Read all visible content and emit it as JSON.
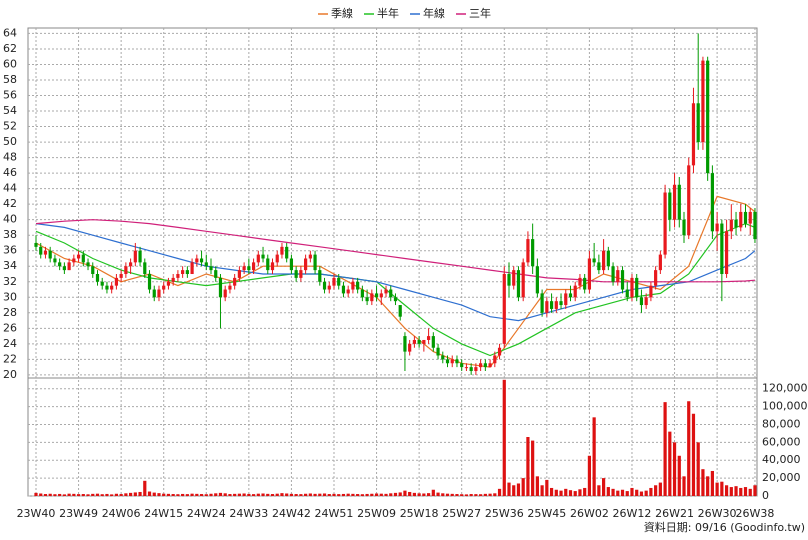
{
  "chart_data": [
    {
      "type": "candlestick",
      "ylim": [
        19.6,
        64.7
      ],
      "grid": true,
      "up_color": "#e8191e",
      "down_color": "#009a00",
      "yticks": [
        20,
        22,
        24,
        26,
        28,
        30,
        32,
        34,
        36,
        38,
        40,
        42,
        44,
        46,
        48,
        50,
        52,
        54,
        56,
        58,
        60,
        62,
        64
      ],
      "open": [
        37,
        36.5,
        35.5,
        36,
        35,
        34.5,
        34,
        33.5,
        34.5,
        35,
        35.5,
        34.5,
        34,
        33,
        32,
        31.5,
        31,
        31.5,
        32.5,
        33,
        34,
        34.5,
        36,
        34.5,
        33,
        31,
        30,
        31,
        31.5,
        32,
        32.5,
        33,
        33.5,
        33,
        34.5,
        35,
        34.5,
        34,
        33.5,
        32.5,
        30,
        31,
        31.5,
        32.5,
        33.5,
        34,
        33.5,
        34.5,
        35.5,
        35,
        33.5,
        34.5,
        35.5,
        36.5,
        35,
        33.5,
        32.5,
        33.5,
        35,
        35.5,
        33.5,
        32,
        31,
        31.5,
        32.5,
        31.5,
        30.5,
        31,
        32,
        31,
        30,
        29.5,
        30.5,
        30,
        30.5,
        31,
        30,
        29,
        25,
        23,
        24,
        24.5,
        24,
        24.5,
        25,
        23.5,
        22.5,
        22,
        21.5,
        22,
        21.5,
        21,
        21,
        20.5,
        21,
        21.5,
        21,
        21.5,
        22.5,
        24,
        33,
        31.5,
        33.5,
        30,
        34.5,
        37.5,
        34,
        30.5,
        28,
        29.5,
        28.5,
        29.5,
        29,
        30.5,
        30,
        31.5,
        32.5,
        31,
        35,
        34.5,
        33.5,
        36,
        34,
        32,
        33.5,
        31,
        30,
        32.5,
        30,
        29,
        30,
        31.5,
        33.5,
        35.5,
        43.5,
        40,
        44.5,
        40,
        38,
        47,
        55,
        50,
        60.5,
        46,
        38.5,
        39.5,
        33,
        38.5,
        40,
        39,
        41,
        39.5,
        41
      ],
      "high": [
        38,
        37,
        36.5,
        36.5,
        35.5,
        35,
        34.5,
        35,
        35.5,
        36,
        36,
        35,
        34.5,
        33.5,
        32.5,
        32,
        32,
        33,
        33.5,
        34.5,
        35,
        37,
        36.5,
        35,
        33.5,
        31.5,
        31.5,
        32,
        32.5,
        33,
        33.5,
        34,
        34,
        35,
        35.5,
        36,
        35.5,
        35,
        34,
        33,
        31.5,
        32,
        33,
        34,
        34.5,
        35,
        35,
        36,
        36.5,
        35.5,
        35,
        36,
        37,
        37,
        35.5,
        34,
        34,
        35.5,
        36,
        36,
        34,
        32.5,
        32,
        33,
        33,
        32,
        31.5,
        32.5,
        32.5,
        31.5,
        31,
        31,
        31.5,
        31,
        31.5,
        31.5,
        30.5,
        29,
        25.5,
        24.5,
        25,
        25,
        24.5,
        26,
        25.5,
        24,
        23,
        22.5,
        22.5,
        22.5,
        22,
        21.5,
        21.5,
        21.5,
        22,
        22,
        22,
        23,
        24,
        34,
        34.5,
        34,
        34,
        35,
        38.5,
        39.5,
        35,
        31,
        30,
        30.5,
        30,
        30.5,
        31,
        31.5,
        32,
        33,
        33,
        36,
        37,
        35.5,
        37.5,
        36.5,
        34.5,
        34,
        34,
        32,
        33,
        33,
        31,
        30.5,
        32,
        34,
        36,
        44.5,
        44,
        46,
        45.5,
        41,
        48,
        57,
        64,
        61,
        61,
        47,
        41,
        40,
        40,
        42,
        41,
        42,
        42,
        41.5,
        41.5
      ],
      "low": [
        36,
        35,
        35,
        34.5,
        34,
        33.5,
        33,
        33.5,
        34,
        34.5,
        34,
        33.5,
        32.5,
        31.5,
        31,
        30.5,
        30.5,
        31,
        32,
        32.5,
        33,
        34,
        34,
        32.5,
        30.5,
        29.5,
        29.5,
        30.5,
        31,
        31.5,
        32,
        32.5,
        32.5,
        33,
        34,
        34,
        33.5,
        33,
        32,
        26,
        29.5,
        30.5,
        31,
        32,
        33,
        33,
        33,
        34,
        34.5,
        33,
        33,
        34,
        35,
        34.5,
        33,
        32,
        32,
        33,
        34.5,
        33,
        31.5,
        30.5,
        30.5,
        31,
        31,
        30,
        30,
        30.5,
        30.5,
        29.5,
        29,
        29,
        29.5,
        29,
        30,
        29.5,
        29,
        27,
        20.5,
        22.5,
        23.5,
        23.5,
        23,
        24,
        23,
        22,
        21.5,
        21,
        21,
        21,
        20.5,
        20.5,
        20,
        20,
        20.5,
        20.5,
        21,
        21,
        22,
        23.5,
        30,
        31,
        29.5,
        29.5,
        34,
        33,
        30,
        27.5,
        27.5,
        28,
        28,
        28.5,
        28.5,
        29.5,
        29.5,
        31,
        30.5,
        30.5,
        34,
        33,
        33,
        33.5,
        31.5,
        31.5,
        30.5,
        29.5,
        29.5,
        29.5,
        28,
        28.5,
        29.5,
        31,
        33,
        35,
        38.5,
        39,
        39,
        37,
        37.5,
        46,
        49,
        49,
        45,
        37.5,
        36,
        29.5,
        32.5,
        37.5,
        38,
        38.5,
        39,
        38,
        37
      ],
      "close": [
        36.5,
        35.5,
        36,
        35,
        34.5,
        34,
        33.5,
        34.5,
        35,
        35.5,
        34.5,
        34,
        33,
        32,
        31.5,
        31,
        31.5,
        32.5,
        33,
        34,
        34.5,
        36,
        34.5,
        33,
        31,
        30,
        31,
        31.5,
        32,
        32.5,
        33,
        33.5,
        33,
        34.5,
        35,
        34.5,
        34,
        33.5,
        32.5,
        30,
        31,
        31.5,
        32.5,
        33.5,
        34,
        33.5,
        34.5,
        35.5,
        35,
        33.5,
        34.5,
        35.5,
        36.5,
        35,
        33.5,
        32.5,
        33.5,
        35,
        35.5,
        33.5,
        32,
        31,
        31.5,
        32.5,
        31.5,
        30.5,
        31,
        32,
        31,
        30,
        29.5,
        30.5,
        30,
        30.5,
        31,
        30,
        29.5,
        27.5,
        23,
        24,
        24.5,
        24,
        24.5,
        25,
        23.5,
        22.5,
        22,
        21.5,
        22,
        21.5,
        21,
        21,
        20.5,
        21,
        21.5,
        21,
        21.5,
        22.5,
        23.5,
        33,
        31.5,
        33.5,
        30,
        34.5,
        37.5,
        34,
        30.5,
        28,
        29.5,
        28.5,
        29.5,
        29,
        30.5,
        30,
        31.5,
        32.5,
        31,
        35,
        34.5,
        33.5,
        36,
        34,
        32,
        33.5,
        31,
        30,
        32.5,
        30,
        29,
        30,
        31.5,
        33.5,
        35.5,
        43.5,
        40,
        44.5,
        40,
        38,
        47,
        55,
        50,
        60.5,
        46,
        38.5,
        39.5,
        33,
        38.5,
        40,
        39,
        41,
        39.5,
        41,
        37.5
      ],
      "lines": [
        {
          "name": "季線",
          "color": "#e8782a",
          "x": [
            0,
            6,
            12,
            18,
            24,
            30,
            36,
            42,
            48,
            54,
            60,
            66,
            72,
            78,
            84,
            90,
            96,
            102,
            108,
            114,
            120,
            126,
            132,
            138,
            144,
            150,
            152
          ],
          "values": [
            37,
            35,
            34,
            32,
            33,
            31.5,
            33,
            32,
            34,
            34,
            34,
            32,
            30,
            26,
            23,
            21.5,
            21,
            26,
            31,
            31,
            33,
            32,
            31,
            34,
            43,
            42,
            41
          ]
        },
        {
          "name": "半年",
          "color": "#22c322",
          "x": [
            0,
            6,
            12,
            18,
            24,
            30,
            36,
            42,
            48,
            54,
            60,
            66,
            72,
            78,
            84,
            90,
            96,
            102,
            108,
            114,
            120,
            126,
            132,
            138,
            144,
            150,
            152
          ],
          "values": [
            38.5,
            37,
            35,
            33.5,
            32.5,
            32,
            31.5,
            32,
            32.5,
            33,
            33,
            32.5,
            32,
            29,
            26,
            24,
            22.5,
            24,
            26,
            28,
            29,
            30,
            30.5,
            33,
            38,
            39.5,
            39
          ]
        },
        {
          "name": "年線",
          "color": "#2e6fd0",
          "x": [
            0,
            6,
            12,
            18,
            24,
            30,
            36,
            42,
            48,
            54,
            60,
            66,
            72,
            78,
            84,
            90,
            96,
            102,
            108,
            114,
            120,
            126,
            132,
            138,
            144,
            150,
            152
          ],
          "values": [
            39.5,
            39,
            38,
            37,
            36,
            35,
            34,
            33.5,
            33,
            33,
            33,
            32.5,
            32,
            31,
            30,
            29,
            27.5,
            27,
            28,
            29,
            30,
            31,
            31.5,
            32,
            33.5,
            35,
            36
          ]
        },
        {
          "name": "三年",
          "color": "#d0207a",
          "x": [
            0,
            6,
            12,
            18,
            24,
            30,
            36,
            42,
            48,
            54,
            60,
            66,
            72,
            78,
            84,
            90,
            96,
            102,
            108,
            114,
            120,
            126,
            132,
            138,
            144,
            150,
            152
          ],
          "values": [
            39.5,
            39.8,
            40,
            39.8,
            39.5,
            39,
            38.5,
            38,
            37.5,
            37,
            36.5,
            36,
            35.5,
            35,
            34.5,
            34,
            33.5,
            33,
            32.5,
            32.3,
            32,
            32,
            32,
            32,
            32,
            32.1,
            32.2
          ]
        }
      ]
    },
    {
      "type": "bar",
      "color": "#dd1111",
      "ylim": [
        0,
        132000
      ],
      "grid": true,
      "yticks": [
        0,
        {
          "value": 20000,
          "label": "20,000"
        },
        {
          "value": 40000,
          "label": "40,000"
        },
        {
          "value": 60000,
          "label": "60,000"
        },
        {
          "value": 80000,
          "label": "80,000"
        },
        {
          "value": 100000,
          "label": "100,000"
        },
        {
          "value": 120000,
          "label": "120,000"
        }
      ],
      "categories": [
        "23W40",
        null,
        null,
        null,
        null,
        null,
        null,
        null,
        null,
        "23W49",
        null,
        null,
        null,
        null,
        null,
        null,
        null,
        null,
        "24W06",
        null,
        null,
        null,
        null,
        null,
        null,
        null,
        null,
        "24W15",
        null,
        null,
        null,
        null,
        null,
        null,
        null,
        null,
        "24W24",
        null,
        null,
        null,
        null,
        null,
        null,
        null,
        null,
        "24W33",
        null,
        null,
        null,
        null,
        null,
        null,
        null,
        null,
        "24W42",
        null,
        null,
        null,
        null,
        null,
        null,
        null,
        null,
        "24W51",
        null,
        null,
        null,
        null,
        null,
        null,
        null,
        null,
        "25W09",
        null,
        null,
        null,
        null,
        null,
        null,
        null,
        null,
        "25W18",
        null,
        null,
        null,
        null,
        null,
        null,
        null,
        null,
        "25W27",
        null,
        null,
        null,
        null,
        null,
        null,
        null,
        null,
        "25W36",
        null,
        null,
        null,
        null,
        null,
        null,
        null,
        null,
        "25W45",
        null,
        null,
        null,
        null,
        null,
        null,
        null,
        null,
        "26W02",
        null,
        null,
        null,
        null,
        null,
        null,
        null,
        null,
        "26W12",
        null,
        null,
        null,
        null,
        null,
        null,
        null,
        null,
        "26W21",
        null,
        null,
        null,
        null,
        null,
        null,
        null,
        null,
        "26W30",
        null,
        null,
        null,
        null,
        null,
        null,
        null,
        "26W38"
      ],
      "values": [
        3500,
        2800,
        2200,
        2500,
        2000,
        2300,
        1800,
        2600,
        2400,
        2100,
        2200,
        1900,
        2400,
        2600,
        2000,
        2300,
        1800,
        2500,
        2200,
        3000,
        3500,
        4000,
        4500,
        17000,
        5000,
        3800,
        3200,
        2600,
        2400,
        2200,
        2000,
        2300,
        2100,
        2600,
        2400,
        2200,
        2000,
        2500,
        3000,
        3500,
        3000,
        2200,
        2400,
        2600,
        2800,
        2300,
        2100,
        2600,
        2800,
        2400,
        2200,
        2600,
        3200,
        2800,
        2400,
        2200,
        2100,
        2500,
        2800,
        2400,
        2600,
        2800,
        2200,
        2400,
        2100,
        2300,
        2600,
        2400,
        2200,
        2000,
        2300,
        2500,
        2800,
        2600,
        2400,
        3000,
        3500,
        4000,
        6000,
        4500,
        3500,
        3000,
        2800,
        3200,
        7000,
        3800,
        3000,
        2600,
        2400,
        2200,
        2000,
        1800,
        2200,
        2100,
        2000,
        2400,
        2600,
        3000,
        8000,
        130000,
        15000,
        12000,
        14000,
        20000,
        66000,
        62000,
        22000,
        12000,
        18000,
        9000,
        7000,
        6000,
        8000,
        6500,
        5500,
        7500,
        9000,
        45000,
        88000,
        12000,
        20000,
        10000,
        8000,
        6000,
        7000,
        5500,
        9000,
        7000,
        5000,
        6000,
        9000,
        12000,
        15000,
        105000,
        72000,
        60000,
        45000,
        22000,
        106000,
        92000,
        60000,
        30000,
        22000,
        28000,
        15000,
        16000,
        12000,
        10000,
        11000,
        9000,
        10000,
        8000,
        12000
      ]
    }
  ],
  "footer": "資料日期: 09/16 (Goodinfo.tw)"
}
